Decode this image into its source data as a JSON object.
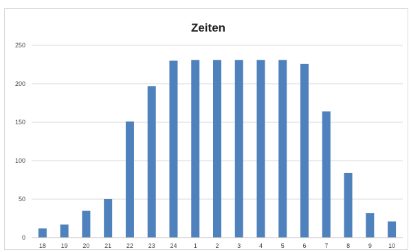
{
  "chart_data": {
    "type": "bar",
    "title": "Zeiten",
    "xlabel": "",
    "ylabel": "",
    "categories": [
      "18",
      "19",
      "20",
      "21",
      "22",
      "23",
      "24",
      "1",
      "2",
      "3",
      "4",
      "5",
      "6",
      "7",
      "8",
      "9",
      "10"
    ],
    "values": [
      12,
      17,
      35,
      50,
      151,
      197,
      230,
      231,
      231,
      231,
      231,
      231,
      226,
      164,
      84,
      32,
      21
    ],
    "ylim": [
      0,
      250
    ],
    "yticks": [
      0,
      50,
      100,
      150,
      200,
      250
    ],
    "grid": true,
    "legend": "none",
    "colors": {
      "bar": "#4f81bd",
      "grid": "#d9d9d9",
      "axis": "#bfbfbf"
    }
  }
}
